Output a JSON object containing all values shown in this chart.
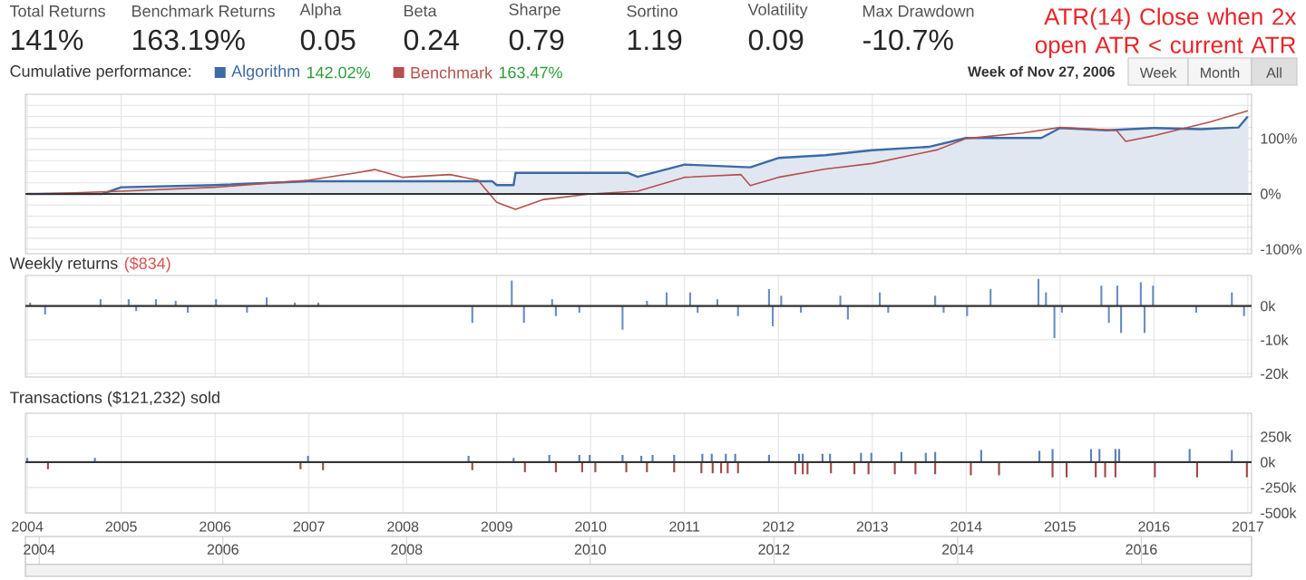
{
  "chart_data": [
    {
      "type": "other",
      "annotations": [
        "Total Returns",
        "141%",
        "Benchmark Returns",
        "163.19%",
        "Alpha",
        "0.05",
        "Beta",
        "0.24",
        "Sharpe",
        "0.79",
        "Sortino",
        "1.19",
        "Volatility",
        "0.09",
        "Max Drawdown",
        "-10.7%",
        "ATR(14) Close when 2x open ATR < current ATR"
      ]
    },
    {
      "type": "line",
      "title": "Cumulative performance:",
      "legend": "top left",
      "grid": true,
      "tick_labels": "y",
      "xlim": [
        2003.98,
        2017.04
      ],
      "ylim": [
        -108,
        180
      ],
      "xticks": [
        2004,
        2005,
        2006,
        2007,
        2008,
        2009,
        2010,
        2011,
        2012,
        2013,
        2014,
        2015,
        2016,
        2017
      ],
      "yticks": [
        {
          "value": -100,
          "label": "-100%"
        },
        {
          "value": -80,
          "label": null
        },
        {
          "value": -60,
          "label": null
        },
        {
          "value": -40,
          "label": null
        },
        {
          "value": -20,
          "label": null
        },
        {
          "value": 0,
          "label": "0%"
        },
        {
          "value": 20,
          "label": null
        },
        {
          "value": 40,
          "label": null
        },
        {
          "value": 60,
          "label": null
        },
        {
          "value": 80,
          "label": null
        },
        {
          "value": 100,
          "label": "100%"
        },
        {
          "value": 120,
          "label": null
        },
        {
          "value": 140,
          "label": null
        },
        {
          "value": 160,
          "label": null
        }
      ],
      "ref_lines": [
        {
          "axis": "y",
          "value": 0,
          "color": "#333333"
        }
      ],
      "annotations": [
        "142.02%",
        "163.47%",
        "Week of Nov 27, 2006",
        "Week",
        "Month",
        "All"
      ],
      "series": [
        {
          "name": "Algorithm",
          "type": "area",
          "color": "#3d6aa5",
          "x": [
            2004.0,
            2004.8,
            2005.0,
            2006.0,
            2007.0,
            2008.0,
            2008.95,
            2009.0,
            2009.18,
            2009.2,
            2010.0,
            2010.4,
            2010.5,
            2011.0,
            2011.7,
            2012.0,
            2012.5,
            2013.0,
            2013.6,
            2014.0,
            2014.8,
            2015.0,
            2015.5,
            2016.0,
            2016.5,
            2016.9,
            2017.0
          ],
          "values": [
            0,
            0,
            12,
            16,
            23,
            23,
            23,
            16,
            16,
            38,
            38,
            38,
            31,
            53,
            48,
            65,
            70,
            79,
            85,
            101,
            101,
            119,
            115,
            119,
            117,
            120,
            140
          ]
        },
        {
          "name": "Benchmark",
          "type": "line",
          "color": "#b5504d",
          "x": [
            2004.0,
            2004.5,
            2005.0,
            2006.0,
            2007.0,
            2007.5,
            2007.7,
            2008.0,
            2008.5,
            2008.8,
            2009.0,
            2009.2,
            2009.5,
            2010.0,
            2010.5,
            2011.0,
            2011.6,
            2011.7,
            2012.0,
            2012.5,
            2013.0,
            2013.7,
            2014.0,
            2014.6,
            2015.0,
            2015.6,
            2015.7,
            2016.0,
            2016.6,
            2017.0
          ],
          "values": [
            0,
            2,
            5,
            12,
            25,
            38,
            44,
            30,
            35,
            25,
            -15,
            -28,
            -10,
            0,
            5,
            30,
            35,
            15,
            30,
            45,
            55,
            80,
            100,
            110,
            120,
            115,
            95,
            105,
            130,
            150
          ]
        }
      ]
    },
    {
      "type": "bar",
      "title": "Weekly returns",
      "subtitle": "($834)",
      "grid": true,
      "tick_labels": "y",
      "xlim": [
        2003.98,
        2017.04
      ],
      "ylim": [
        -21,
        9
      ],
      "xticks": [
        2004,
        2005,
        2006,
        2007,
        2008,
        2009,
        2010,
        2011,
        2012,
        2013,
        2014,
        2015,
        2016,
        2017
      ],
      "yticks": [
        {
          "value": -20,
          "label": "-20k"
        },
        {
          "value": -10,
          "label": "-10k"
        },
        {
          "value": 0,
          "label": "0k"
        }
      ],
      "ref_lines": [
        {
          "axis": "y",
          "value": 0,
          "color": "#333333"
        }
      ],
      "series": [
        {
          "color": "#6a8fc0",
          "x": [
            2004.03,
            2004.19,
            2004.78,
            2005.08,
            2005.16,
            2005.37,
            2005.58,
            2005.71,
            2006.01,
            2006.34,
            2006.55,
            2006.85,
            2007.1,
            2008.74,
            2009.16,
            2009.29,
            2009.59,
            2009.63,
            2009.88,
            2010.34,
            2010.6,
            2010.81,
            2011.06,
            2011.14,
            2011.35,
            2011.57,
            2011.9,
            2011.94,
            2012.03,
            2012.24,
            2012.66,
            2012.74,
            2013.08,
            2013.17,
            2013.67,
            2013.76,
            2014.01,
            2014.26,
            2014.77,
            2014.85,
            2014.94,
            2015.02,
            2015.44,
            2015.52,
            2015.61,
            2015.65,
            2015.86,
            2015.9,
            2015.99,
            2016.45,
            2016.83,
            2016.96
          ],
          "values": [
            1,
            -2.5,
            2,
            2,
            -1.5,
            2,
            1.5,
            -2,
            2,
            -2,
            2.5,
            1,
            1,
            -5,
            7.5,
            -5,
            2,
            -3,
            -2,
            -7,
            1.5,
            4,
            4,
            -2,
            2,
            -3,
            5,
            -6,
            3,
            -2,
            3,
            -4,
            4,
            -2,
            3,
            -2,
            -3,
            5,
            8,
            4,
            -9.5,
            -2,
            6,
            -5,
            6,
            -8,
            7,
            -8,
            6,
            -2,
            4,
            -3
          ]
        }
      ]
    },
    {
      "type": "bar",
      "title": "Transactions ($121,232) sold",
      "grid": true,
      "xlim": [
        2003.98,
        2017.04
      ],
      "ylim": [
        -500,
        480
      ],
      "xticks": [
        2004,
        2005,
        2006,
        2007,
        2008,
        2009,
        2010,
        2011,
        2012,
        2013,
        2014,
        2015,
        2016,
        2017
      ],
      "yticks": [
        {
          "value": -500,
          "label": "-500k"
        },
        {
          "value": -250,
          "label": "-250k"
        },
        {
          "value": 0,
          "label": "0k"
        },
        {
          "value": 250,
          "label": "250k"
        }
      ],
      "ref_lines": [
        {
          "axis": "y",
          "value": 0,
          "color": "#333333"
        }
      ],
      "series": [
        {
          "color": "#5b82b5",
          "x": [
            2004.0,
            2004.72,
            2006.99,
            2008.7,
            2009.18,
            2009.56,
            2009.88,
            2009.99,
            2010.34,
            2010.54,
            2010.66,
            2010.89,
            2011.19,
            2011.29,
            2011.44,
            2011.54,
            2011.9,
            2012.22,
            2012.26,
            2012.47,
            2012.55,
            2012.88,
            2012.99,
            2013.31,
            2013.57,
            2013.67,
            2014.16,
            2014.78,
            2014.92,
            2015.33,
            2015.42,
            2015.59,
            2015.63,
            2016.38,
            2016.83
          ],
          "values": [
            40,
            40,
            60,
            60,
            40,
            70,
            70,
            70,
            70,
            60,
            70,
            70,
            80,
            80,
            80,
            80,
            70,
            80,
            80,
            80,
            80,
            90,
            90,
            100,
            90,
            100,
            120,
            110,
            130,
            130,
            130,
            130,
            130,
            130,
            120
          ]
        },
        {
          "color": "#a04a48",
          "x": [
            2004.22,
            2006.91,
            2007.15,
            2008.74,
            2009.3,
            2009.63,
            2009.91,
            2010.05,
            2010.38,
            2010.6,
            2010.89,
            2011.18,
            2011.3,
            2011.39,
            2011.46,
            2011.57,
            2012.18,
            2012.26,
            2012.31,
            2012.56,
            2012.81,
            2012.96,
            2013.24,
            2013.46,
            2013.67,
            2014.05,
            2014.35,
            2014.92,
            2015.07,
            2015.38,
            2015.48,
            2015.59,
            2016.01,
            2016.46,
            2016.99
          ],
          "values": [
            -70,
            -70,
            -80,
            -80,
            -100,
            -100,
            -100,
            -100,
            -100,
            -100,
            -100,
            -110,
            -110,
            -110,
            -110,
            -110,
            -120,
            -120,
            -120,
            -110,
            -120,
            -120,
            -120,
            -120,
            -120,
            -130,
            -130,
            -150,
            -150,
            -150,
            -150,
            -150,
            -150,
            -150,
            -150
          ]
        }
      ],
      "x2lim": [
        2003.85,
        2017.2
      ],
      "x2ticks": [
        2004,
        2006,
        2008,
        2010,
        2012,
        2014,
        2016
      ]
    }
  ]
}
